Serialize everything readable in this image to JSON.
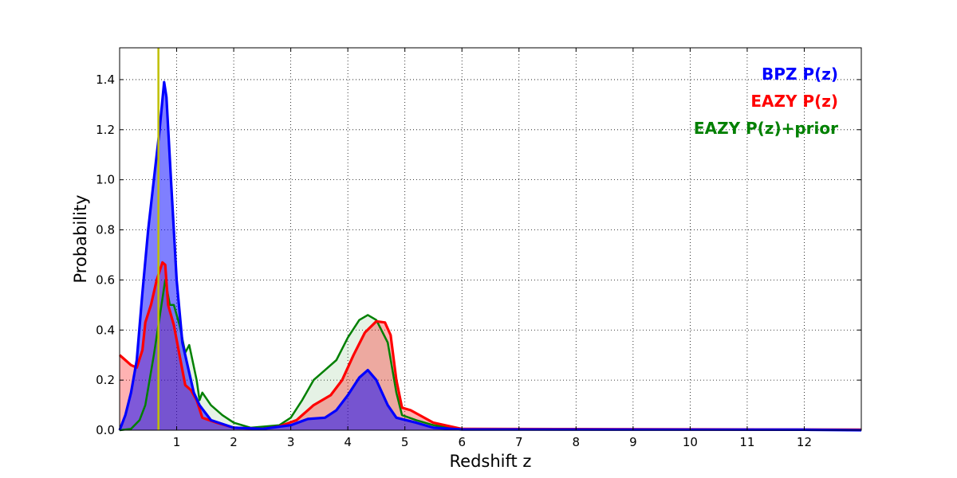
{
  "chart_data": {
    "type": "area",
    "xlabel": "Redshift z",
    "ylabel": "Probability",
    "xlim": [
      0,
      13
    ],
    "ylim": [
      0,
      1.527
    ],
    "xticks": [
      1,
      2,
      3,
      4,
      5,
      6,
      7,
      8,
      9,
      10,
      11,
      12
    ],
    "yticks": [
      0.0,
      0.2,
      0.4,
      0.6,
      0.8,
      1.0,
      1.2,
      1.4
    ],
    "ytick_labels": [
      "0.0",
      "0.2",
      "0.4",
      "0.6",
      "0.8",
      "1.0",
      "1.2",
      "1.4"
    ],
    "grid": true,
    "legend_placement": "top-right",
    "vline": {
      "x": 0.68,
      "color": "#bfbf00"
    },
    "series": [
      {
        "name": "EAZY P(z)+prior",
        "color": "#008000",
        "fill": "rgba(0,128,0,0.1)",
        "points": [
          [
            0,
            0
          ],
          [
            0.2,
            0.005
          ],
          [
            0.35,
            0.04
          ],
          [
            0.45,
            0.1
          ],
          [
            0.6,
            0.3
          ],
          [
            0.7,
            0.45
          ],
          [
            0.8,
            0.6
          ],
          [
            0.88,
            0.5
          ],
          [
            0.95,
            0.5
          ],
          [
            1.05,
            0.42
          ],
          [
            1.15,
            0.31
          ],
          [
            1.22,
            0.34
          ],
          [
            1.35,
            0.2
          ],
          [
            1.4,
            0.12
          ],
          [
            1.45,
            0.15
          ],
          [
            1.6,
            0.1
          ],
          [
            1.8,
            0.06
          ],
          [
            2.0,
            0.03
          ],
          [
            2.3,
            0.01
          ],
          [
            2.8,
            0.02
          ],
          [
            3.0,
            0.05
          ],
          [
            3.2,
            0.12
          ],
          [
            3.4,
            0.2
          ],
          [
            3.6,
            0.24
          ],
          [
            3.8,
            0.28
          ],
          [
            4.0,
            0.37
          ],
          [
            4.2,
            0.44
          ],
          [
            4.35,
            0.46
          ],
          [
            4.5,
            0.44
          ],
          [
            4.7,
            0.35
          ],
          [
            4.85,
            0.15
          ],
          [
            4.95,
            0.06
          ],
          [
            5.2,
            0.04
          ],
          [
            5.5,
            0.02
          ],
          [
            6,
            0.005
          ],
          [
            13,
            0.002
          ]
        ]
      },
      {
        "name": "EAZY P(z)",
        "color": "#ff0000",
        "fill": "rgba(255,0,0,0.3)",
        "points": [
          [
            0,
            0.3
          ],
          [
            0.1,
            0.28
          ],
          [
            0.2,
            0.26
          ],
          [
            0.3,
            0.25
          ],
          [
            0.4,
            0.32
          ],
          [
            0.45,
            0.43
          ],
          [
            0.55,
            0.5
          ],
          [
            0.65,
            0.6
          ],
          [
            0.75,
            0.67
          ],
          [
            0.8,
            0.66
          ],
          [
            0.85,
            0.5
          ],
          [
            0.95,
            0.42
          ],
          [
            1.05,
            0.3
          ],
          [
            1.15,
            0.18
          ],
          [
            1.25,
            0.16
          ],
          [
            1.35,
            0.12
          ],
          [
            1.45,
            0.05
          ],
          [
            1.7,
            0.03
          ],
          [
            2,
            0.01
          ],
          [
            2.5,
            0.005
          ],
          [
            2.8,
            0.015
          ],
          [
            3.1,
            0.04
          ],
          [
            3.4,
            0.1
          ],
          [
            3.7,
            0.14
          ],
          [
            3.9,
            0.2
          ],
          [
            4.1,
            0.3
          ],
          [
            4.3,
            0.39
          ],
          [
            4.5,
            0.435
          ],
          [
            4.65,
            0.43
          ],
          [
            4.75,
            0.38
          ],
          [
            4.85,
            0.2
          ],
          [
            4.95,
            0.09
          ],
          [
            5.1,
            0.08
          ],
          [
            5.5,
            0.03
          ],
          [
            6,
            0.005
          ],
          [
            13,
            0.002
          ]
        ]
      },
      {
        "name": "BPZ P(z)",
        "color": "#0000ff",
        "fill": "rgba(0,0,255,0.5)",
        "points": [
          [
            0,
            0
          ],
          [
            0.1,
            0.06
          ],
          [
            0.2,
            0.15
          ],
          [
            0.3,
            0.28
          ],
          [
            0.4,
            0.55
          ],
          [
            0.5,
            0.8
          ],
          [
            0.6,
            1.0
          ],
          [
            0.7,
            1.2
          ],
          [
            0.78,
            1.39
          ],
          [
            0.82,
            1.33
          ],
          [
            0.9,
            1.0
          ],
          [
            1.0,
            0.6
          ],
          [
            1.1,
            0.35
          ],
          [
            1.2,
            0.25
          ],
          [
            1.3,
            0.15
          ],
          [
            1.4,
            0.1
          ],
          [
            1.6,
            0.04
          ],
          [
            2,
            0.01
          ],
          [
            2.5,
            0.005
          ],
          [
            3,
            0.02
          ],
          [
            3.3,
            0.045
          ],
          [
            3.6,
            0.05
          ],
          [
            3.8,
            0.08
          ],
          [
            4.0,
            0.14
          ],
          [
            4.2,
            0.21
          ],
          [
            4.35,
            0.24
          ],
          [
            4.5,
            0.2
          ],
          [
            4.7,
            0.1
          ],
          [
            4.85,
            0.05
          ],
          [
            5.2,
            0.03
          ],
          [
            5.5,
            0.01
          ],
          [
            6,
            0.003
          ],
          [
            12,
            0.002
          ],
          [
            13,
            0
          ]
        ]
      }
    ],
    "legend": [
      {
        "label": "BPZ P(z)",
        "color": "#0000ff"
      },
      {
        "label": "EAZY P(z)",
        "color": "#ff0000"
      },
      {
        "label": "EAZY P(z)+prior",
        "color": "#008000"
      }
    ]
  }
}
